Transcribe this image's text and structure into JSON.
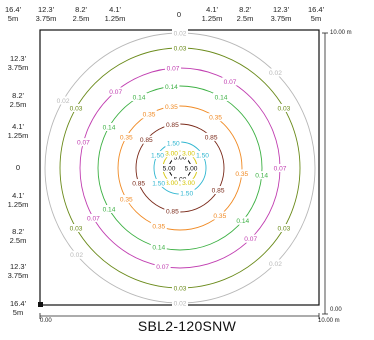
{
  "top_ticks": [
    {
      "ft": "16.4'",
      "m": "5m"
    },
    {
      "ft": "12.3'",
      "m": "3.75m"
    },
    {
      "ft": "8.2'",
      "m": "2.5m"
    },
    {
      "ft": "4.1'",
      "m": "1.25m"
    },
    {
      "ft": "0",
      "m": ""
    },
    {
      "ft": "4.1'",
      "m": "1.25m"
    },
    {
      "ft": "8.2'",
      "m": "2.5m"
    },
    {
      "ft": "12.3'",
      "m": "3.75m"
    },
    {
      "ft": "16.4'",
      "m": "5m"
    }
  ],
  "left_ticks": [
    {
      "ft": "12.3'",
      "m": "3.75m"
    },
    {
      "ft": "8.2'",
      "m": "2.5m"
    },
    {
      "ft": "4.1'",
      "m": "1.25m"
    },
    {
      "ft": "0",
      "m": ""
    },
    {
      "ft": "4.1'",
      "m": "1.25m"
    },
    {
      "ft": "8.2'",
      "m": "2.5m"
    },
    {
      "ft": "12.3'",
      "m": "3.75m"
    },
    {
      "ft": "16.4'",
      "m": "5m"
    }
  ],
  "scale": {
    "right_top": "10.00 m",
    "right_bottom": "0.00",
    "bottom_left": "0.00",
    "bottom_right": "10.00 m"
  },
  "model": "SBL2-120SNW",
  "chart_data": {
    "type": "isoline-contour",
    "units": "fc",
    "contours": [
      {
        "value": "5.00",
        "color": "#111111"
      },
      {
        "value": "3.00",
        "color": "#d4c400"
      },
      {
        "value": "1.50",
        "color": "#2fb6d0"
      },
      {
        "value": "0.85",
        "color": "#7a2a1a"
      },
      {
        "value": "0.35",
        "color": "#f08a24"
      },
      {
        "value": "0.14",
        "color": "#3cb043"
      },
      {
        "value": "0.07",
        "color": "#c13fb1"
      },
      {
        "value": "0.03",
        "color": "#6a8a1a"
      },
      {
        "value": "0.02",
        "color": "#b8b8b8"
      }
    ]
  }
}
